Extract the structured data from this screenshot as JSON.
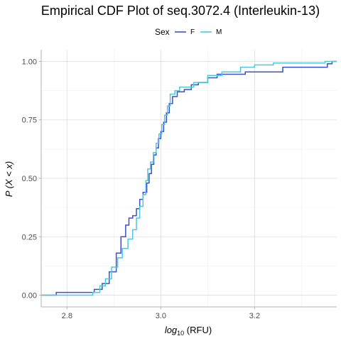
{
  "chart_data": {
    "type": "line",
    "subtype": "step-ecdf",
    "title": "Empirical CDF Plot of seq.3072.4 (Interleukin-13)",
    "xlabel_base": "log",
    "xlabel_subscript": "10",
    "xlabel_suffix": " (RFU)",
    "ylabel": "P (X < x)",
    "xlim": [
      2.745,
      3.375
    ],
    "ylim": [
      -0.05,
      1.05
    ],
    "x_ticks": [
      2.8,
      3.0,
      3.2
    ],
    "x_tick_labels": [
      "2.8",
      "3.0",
      "3.2"
    ],
    "y_ticks": [
      0,
      0.25,
      0.5,
      0.75,
      1.0
    ],
    "y_tick_labels": [
      "0.00",
      "0.25",
      "0.50",
      "0.75",
      "1.00"
    ],
    "grid": true,
    "legend": {
      "title": "Sex",
      "position": "top"
    },
    "series": [
      {
        "name": "F",
        "color": "#3a50d0",
        "points": [
          [
            2.745,
            0.0
          ],
          [
            2.777,
            0.0
          ],
          [
            2.777,
            0.012
          ],
          [
            2.858,
            0.012
          ],
          [
            2.858,
            0.025
          ],
          [
            2.875,
            0.025
          ],
          [
            2.875,
            0.05
          ],
          [
            2.89,
            0.05
          ],
          [
            2.89,
            0.1
          ],
          [
            2.905,
            0.1
          ],
          [
            2.905,
            0.18
          ],
          [
            2.915,
            0.18
          ],
          [
            2.915,
            0.25
          ],
          [
            2.925,
            0.25
          ],
          [
            2.925,
            0.3
          ],
          [
            2.932,
            0.3
          ],
          [
            2.932,
            0.33
          ],
          [
            2.94,
            0.33
          ],
          [
            2.94,
            0.34
          ],
          [
            2.948,
            0.34
          ],
          [
            2.948,
            0.37
          ],
          [
            2.955,
            0.37
          ],
          [
            2.955,
            0.41
          ],
          [
            2.962,
            0.41
          ],
          [
            2.962,
            0.44
          ],
          [
            2.97,
            0.44
          ],
          [
            2.97,
            0.48
          ],
          [
            2.975,
            0.48
          ],
          [
            2.975,
            0.52
          ],
          [
            2.98,
            0.52
          ],
          [
            2.98,
            0.56
          ],
          [
            2.985,
            0.56
          ],
          [
            2.985,
            0.6
          ],
          [
            2.99,
            0.6
          ],
          [
            2.99,
            0.63
          ],
          [
            2.995,
            0.63
          ],
          [
            2.995,
            0.67
          ],
          [
            3.0,
            0.67
          ],
          [
            3.0,
            0.7
          ],
          [
            3.006,
            0.7
          ],
          [
            3.006,
            0.74
          ],
          [
            3.012,
            0.74
          ],
          [
            3.012,
            0.78
          ],
          [
            3.018,
            0.78
          ],
          [
            3.018,
            0.82
          ],
          [
            3.025,
            0.82
          ],
          [
            3.025,
            0.85
          ],
          [
            3.035,
            0.85
          ],
          [
            3.035,
            0.87
          ],
          [
            3.05,
            0.87
          ],
          [
            3.05,
            0.88
          ],
          [
            3.065,
            0.88
          ],
          [
            3.065,
            0.9
          ],
          [
            3.08,
            0.9
          ],
          [
            3.08,
            0.91
          ],
          [
            3.1,
            0.91
          ],
          [
            3.1,
            0.93
          ],
          [
            3.12,
            0.93
          ],
          [
            3.12,
            0.945
          ],
          [
            3.18,
            0.945
          ],
          [
            3.18,
            0.955
          ],
          [
            3.26,
            0.955
          ],
          [
            3.26,
            0.975
          ],
          [
            3.355,
            0.975
          ],
          [
            3.355,
            0.99
          ],
          [
            3.365,
            0.99
          ],
          [
            3.365,
            1.0
          ],
          [
            3.375,
            1.0
          ]
        ]
      },
      {
        "name": "M",
        "color": "#4cc8dc",
        "points": [
          [
            2.745,
            0.0
          ],
          [
            2.855,
            0.0
          ],
          [
            2.855,
            0.012
          ],
          [
            2.87,
            0.012
          ],
          [
            2.87,
            0.04
          ],
          [
            2.882,
            0.04
          ],
          [
            2.882,
            0.07
          ],
          [
            2.895,
            0.07
          ],
          [
            2.895,
            0.12
          ],
          [
            2.908,
            0.12
          ],
          [
            2.908,
            0.16
          ],
          [
            2.918,
            0.16
          ],
          [
            2.918,
            0.2
          ],
          [
            2.93,
            0.2
          ],
          [
            2.93,
            0.24
          ],
          [
            2.94,
            0.24
          ],
          [
            2.94,
            0.28
          ],
          [
            2.948,
            0.28
          ],
          [
            2.948,
            0.33
          ],
          [
            2.955,
            0.33
          ],
          [
            2.955,
            0.38
          ],
          [
            2.962,
            0.38
          ],
          [
            2.962,
            0.43
          ],
          [
            2.968,
            0.43
          ],
          [
            2.968,
            0.49
          ],
          [
            2.972,
            0.49
          ],
          [
            2.972,
            0.54
          ],
          [
            2.978,
            0.54
          ],
          [
            2.978,
            0.57
          ],
          [
            2.984,
            0.57
          ],
          [
            2.984,
            0.61
          ],
          [
            2.99,
            0.61
          ],
          [
            2.99,
            0.65
          ],
          [
            2.996,
            0.65
          ],
          [
            2.996,
            0.69
          ],
          [
            3.002,
            0.69
          ],
          [
            3.002,
            0.73
          ],
          [
            3.008,
            0.73
          ],
          [
            3.008,
            0.77
          ],
          [
            3.014,
            0.77
          ],
          [
            3.014,
            0.81
          ],
          [
            3.02,
            0.81
          ],
          [
            3.02,
            0.86
          ],
          [
            3.03,
            0.86
          ],
          [
            3.03,
            0.875
          ],
          [
            3.04,
            0.875
          ],
          [
            3.04,
            0.89
          ],
          [
            3.07,
            0.89
          ],
          [
            3.07,
            0.91
          ],
          [
            3.1,
            0.91
          ],
          [
            3.1,
            0.94
          ],
          [
            3.13,
            0.94
          ],
          [
            3.13,
            0.955
          ],
          [
            3.17,
            0.955
          ],
          [
            3.17,
            0.975
          ],
          [
            3.2,
            0.975
          ],
          [
            3.2,
            0.985
          ],
          [
            3.24,
            0.985
          ],
          [
            3.24,
            0.993
          ],
          [
            3.35,
            0.993
          ],
          [
            3.35,
            1.0
          ],
          [
            3.375,
            1.0
          ]
        ]
      }
    ]
  }
}
